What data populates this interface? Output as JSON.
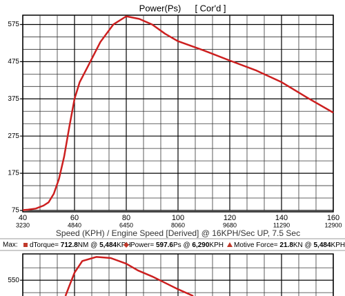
{
  "chart_data": [
    {
      "type": "line",
      "title": "Power(Ps)",
      "subtitle": "[ Cor'd ]",
      "xlabel": "Speed (KPH) / Engine Speed [Derived] @ 16KPH/Sec UP, 7.5 Sec",
      "x": [
        40,
        42,
        45,
        48,
        50,
        52,
        54,
        56,
        58,
        60,
        62,
        65,
        70,
        75,
        80,
        85,
        90,
        95,
        100,
        110,
        120,
        130,
        140,
        150,
        160
      ],
      "values": [
        76,
        77,
        80,
        88,
        97,
        120,
        160,
        220,
        300,
        375,
        420,
        460,
        528,
        575,
        597,
        590,
        575,
        550,
        530,
        505,
        478,
        452,
        420,
        378,
        338
      ],
      "color": "#cc1f1f",
      "xlim": [
        40,
        160
      ],
      "xticks": [
        40,
        60,
        80,
        100,
        120,
        140,
        160
      ],
      "x2_tick_labels": [
        "3230",
        "4840",
        "6450",
        "8060",
        "9680",
        "11290",
        "12900"
      ],
      "ylim": [
        75,
        600
      ],
      "yticks": [
        75,
        175,
        275,
        375,
        475,
        575
      ],
      "grid": true
    },
    {
      "type": "line",
      "x": [
        56.5,
        58,
        60,
        63,
        68.5,
        74,
        80,
        84.5,
        90,
        95,
        100,
        105.9
      ],
      "values": [
        508,
        535,
        570,
        601,
        612,
        609,
        594,
        576,
        560,
        543,
        526,
        508
      ],
      "color": "#cc1f1f",
      "xlim": [
        40,
        160
      ],
      "xticks": [
        40,
        60,
        80,
        100,
        120,
        140,
        160
      ],
      "ylim": [
        508,
        620
      ],
      "yticks": [
        550
      ],
      "grid": true
    }
  ],
  "max_summary": {
    "label": "Max:",
    "items": [
      {
        "name": "dTorque= ",
        "value": "712.8",
        "unit": "NM @ ",
        "speed": "5,484",
        "speed_unit": "KPH",
        "color": "#c0392b",
        "marker": "square"
      },
      {
        "name": "Power= ",
        "value": "597.6",
        "unit": "Ps @ ",
        "speed": "6,290",
        "speed_unit": "KPH",
        "color": "#c0392b",
        "marker": "diamond"
      },
      {
        "name": "Motive Force= ",
        "value": "21.8",
        "unit": "KN @ ",
        "speed": "5,484",
        "speed_unit": "KPH",
        "color": "#c0392b",
        "marker": "triangle"
      }
    ]
  }
}
